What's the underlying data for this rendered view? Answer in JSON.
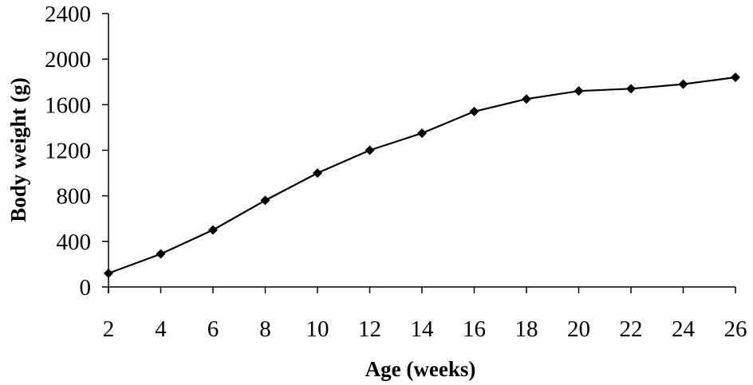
{
  "chart_data": {
    "type": "line",
    "title": "",
    "xlabel": "Age (weeks)",
    "ylabel": "Body weight (g)",
    "x": [
      2,
      4,
      6,
      8,
      10,
      12,
      14,
      16,
      18,
      20,
      22,
      24,
      26
    ],
    "series": [
      {
        "values": [
          120,
          290,
          500,
          760,
          1000,
          1200,
          1350,
          1540,
          1650,
          1720,
          1740,
          1780,
          1840
        ]
      }
    ],
    "xticks": [
      "2",
      "4",
      "6",
      "8",
      "10",
      "12",
      "14",
      "16",
      "18",
      "20",
      "22",
      "24",
      "26"
    ],
    "yticks": [
      "0",
      "400",
      "800",
      "1200",
      "1600",
      "2000",
      "2400"
    ],
    "xlim": [
      2,
      26
    ],
    "ylim": [
      0,
      2400
    ],
    "grid": false,
    "legend": "none",
    "marker": "diamond",
    "line_color": "#000000"
  }
}
